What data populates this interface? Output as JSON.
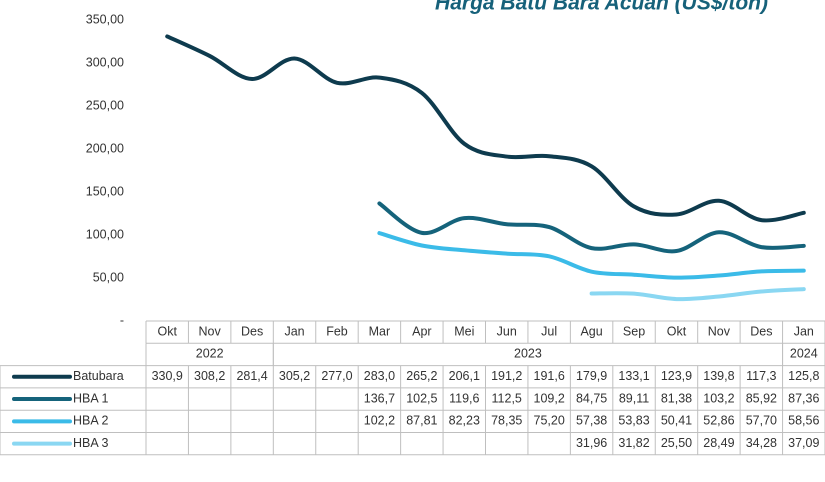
{
  "chart_data": {
    "type": "line",
    "title": "Harga Batu Bara Acuan (US$/ton)",
    "categories": [
      "Okt",
      "Nov",
      "Des",
      "Jan",
      "Feb",
      "Mar",
      "Apr",
      "Mei",
      "Jun",
      "Jul",
      "Agu",
      "Sep",
      "Okt",
      "Nov",
      "Des",
      "Jan"
    ],
    "year_groups": [
      {
        "label": "2022",
        "start": 0,
        "end": 2
      },
      {
        "label": "2023",
        "start": 3,
        "end": 14
      },
      {
        "label": "2024",
        "start": 15,
        "end": 15
      }
    ],
    "ylim": [
      0,
      350
    ],
    "yticks": [
      {
        "value": 0,
        "label": "-"
      },
      {
        "value": 50,
        "label": "50,00"
      },
      {
        "value": 100,
        "label": "100,00"
      },
      {
        "value": 150,
        "label": "150,00"
      },
      {
        "value": 200,
        "label": "200,00"
      },
      {
        "value": 250,
        "label": "250,00"
      },
      {
        "value": 300,
        "label": "300,00"
      },
      {
        "value": 350,
        "label": "350,00"
      }
    ],
    "series": [
      {
        "name": "Batubara",
        "color": "#0e3b4e",
        "values": [
          330.9,
          308.2,
          281.4,
          305.2,
          277.0,
          283.0,
          265.2,
          206.1,
          191.2,
          191.6,
          179.9,
          133.1,
          123.9,
          139.8,
          117.3,
          125.8
        ],
        "value_labels": [
          "330,9",
          "308,2",
          "281,4",
          "305,2",
          "277,0",
          "283,0",
          "265,2",
          "206,1",
          "191,2",
          "191,6",
          "179,9",
          "133,1",
          "123,9",
          "139,8",
          "117,3",
          "125,8"
        ]
      },
      {
        "name": "HBA 1",
        "color": "#15637b",
        "values": [
          null,
          null,
          null,
          null,
          null,
          136.7,
          102.5,
          119.6,
          112.5,
          109.2,
          84.75,
          89.11,
          81.38,
          103.2,
          85.92,
          87.36
        ],
        "value_labels": [
          null,
          null,
          null,
          null,
          null,
          "136,7",
          "102,5",
          "119,6",
          "112,5",
          "109,2",
          "84,75",
          "89,11",
          "81,38",
          "103,2",
          "85,92",
          "87,36"
        ]
      },
      {
        "name": "HBA 2",
        "color": "#3bbbe8",
        "values": [
          null,
          null,
          null,
          null,
          null,
          102.2,
          87.81,
          82.23,
          78.35,
          75.2,
          57.38,
          53.83,
          50.41,
          52.86,
          57.7,
          58.56
        ],
        "value_labels": [
          null,
          null,
          null,
          null,
          null,
          "102,2",
          "87,81",
          "82,23",
          "78,35",
          "75,20",
          "57,38",
          "53,83",
          "50,41",
          "52,86",
          "57,70",
          "58,56"
        ]
      },
      {
        "name": "HBA 3",
        "color": "#8ad7f2",
        "values": [
          null,
          null,
          null,
          null,
          null,
          null,
          null,
          null,
          null,
          null,
          31.96,
          31.82,
          25.5,
          28.49,
          34.28,
          37.09
        ],
        "value_labels": [
          null,
          null,
          null,
          null,
          null,
          null,
          null,
          null,
          null,
          null,
          "31,96",
          "31,82",
          "25,50",
          "28,49",
          "34,28",
          "37,09"
        ]
      }
    ]
  }
}
